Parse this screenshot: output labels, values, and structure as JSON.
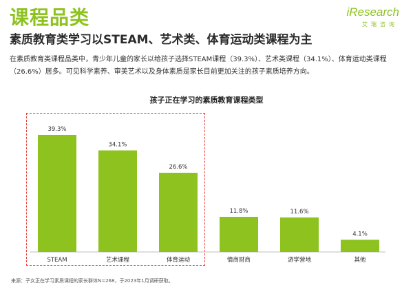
{
  "header": {
    "title": "课程品类",
    "subtitle": "素质教育类学习以STEAM、艺术类、体育运动类课程为主",
    "description": "在素质教育类课程品类中，青少年儿童的家长以给孩子选择STEAM课程（39.3%）、艺术类课程（34.1%）、体育运动类课程（26.6%）居多。可见科学素养、审美艺术以及身体素质是家长目前更加关注的孩子素质培养方向。"
  },
  "logo": {
    "main": "iResearch",
    "sub": "艾瑞咨询"
  },
  "source": "来源：子女正在学习素质课程的家长群体N=268，于2023年1月调研获取。",
  "colors": {
    "accent": "#8dc21f",
    "bar": "#8dc21f",
    "highlight": "#e8413e"
  },
  "chart_data": {
    "type": "bar",
    "title": "孩子正在学习的素质教育课程类型",
    "categories": [
      "STEAM",
      "艺术课程",
      "体育运动",
      "情商财商",
      "游学营地",
      "其他"
    ],
    "values": [
      39.3,
      34.1,
      26.6,
      11.8,
      11.6,
      4.1
    ],
    "value_labels": [
      "39.3%",
      "34.1%",
      "26.6%",
      "11.8%",
      "11.6%",
      "4.1%"
    ],
    "unit": "%",
    "ylim": [
      0,
      40
    ],
    "highlighted_categories": [
      "STEAM",
      "艺术课程",
      "体育运动"
    ],
    "grid": false,
    "legend": "none"
  }
}
